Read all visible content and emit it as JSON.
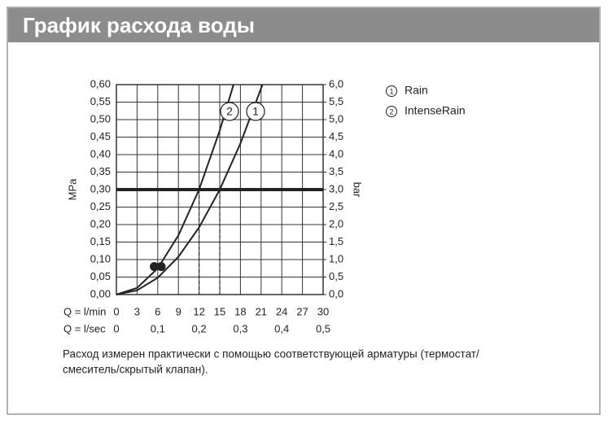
{
  "header": {
    "title": "График расхода воды"
  },
  "chart_data": {
    "type": "line",
    "xlabel": "Q = l/min",
    "x2label": "Q = l/sec",
    "ylabel": "MPa",
    "y2label": "bar",
    "xlim": [
      0,
      30
    ],
    "xticks": [
      0,
      3,
      6,
      9,
      12,
      15,
      18,
      21,
      24,
      27,
      30
    ],
    "x2lim": [
      0,
      0.5
    ],
    "x2ticks": [
      0,
      {
        "value": 0.1,
        "label": "0,1"
      },
      {
        "value": 0.2,
        "label": "0,2"
      },
      {
        "value": 0.3,
        "label": "0,3"
      },
      {
        "value": 0.4,
        "label": "0,4"
      },
      {
        "value": 0.5,
        "label": "0,5"
      }
    ],
    "ylim": [
      0,
      0.6
    ],
    "yticks": [
      {
        "value": 0,
        "label": "0,00"
      },
      {
        "value": 0.05,
        "label": "0,05"
      },
      {
        "value": 0.1,
        "label": "0,10"
      },
      {
        "value": 0.15,
        "label": "0,15"
      },
      {
        "value": 0.2,
        "label": "0,20"
      },
      {
        "value": 0.25,
        "label": "0,25"
      },
      {
        "value": 0.3,
        "label": "0,30"
      },
      {
        "value": 0.35,
        "label": "0,35"
      },
      {
        "value": 0.4,
        "label": "0,40"
      },
      {
        "value": 0.45,
        "label": "0,45"
      },
      {
        "value": 0.5,
        "label": "0,50"
      },
      {
        "value": 0.55,
        "label": "0,55"
      },
      {
        "value": 0.6,
        "label": "0,60"
      }
    ],
    "y2lim": [
      0,
      6
    ],
    "y2ticks": [
      {
        "value": 0,
        "label": "0,0"
      },
      {
        "value": 0.5,
        "label": "0,5"
      },
      {
        "value": 1,
        "label": "1,0"
      },
      {
        "value": 1.5,
        "label": "1,5"
      },
      {
        "value": 2,
        "label": "2,0"
      },
      {
        "value": 2.5,
        "label": "2,5"
      },
      {
        "value": 3,
        "label": "3,0"
      },
      {
        "value": 3.5,
        "label": "3,5"
      },
      {
        "value": 4,
        "label": "4,0"
      },
      {
        "value": 4.5,
        "label": "4,5"
      },
      {
        "value": 5,
        "label": "5,0"
      },
      {
        "value": 5.5,
        "label": "5,5"
      },
      {
        "value": 6,
        "label": "6,0"
      }
    ],
    "grid": true,
    "threshold": 0.3,
    "reference_x": [
      12,
      15
    ],
    "points": {
      "x": [
        5.5,
        6.5
      ],
      "y": [
        0.08,
        0.08
      ]
    },
    "series": [
      {
        "name": "Rain",
        "number": "1",
        "color": "#222222",
        "x": [
          0,
          3,
          6,
          9,
          12,
          15,
          18,
          21.2
        ],
        "values": [
          0,
          0.012,
          0.048,
          0.108,
          0.192,
          0.3,
          0.432,
          0.6
        ]
      },
      {
        "name": "IntenseRain",
        "number": "2",
        "color": "#222222",
        "x": [
          0,
          3,
          6,
          9,
          12,
          15,
          17
        ],
        "values": [
          0,
          0.019,
          0.075,
          0.169,
          0.3,
          0.469,
          0.6
        ]
      }
    ]
  },
  "note": [
    "Расход измерен практически с помощью соответствующей арматуры (термостат/",
    "смеситель/скрытый клапан)."
  ]
}
